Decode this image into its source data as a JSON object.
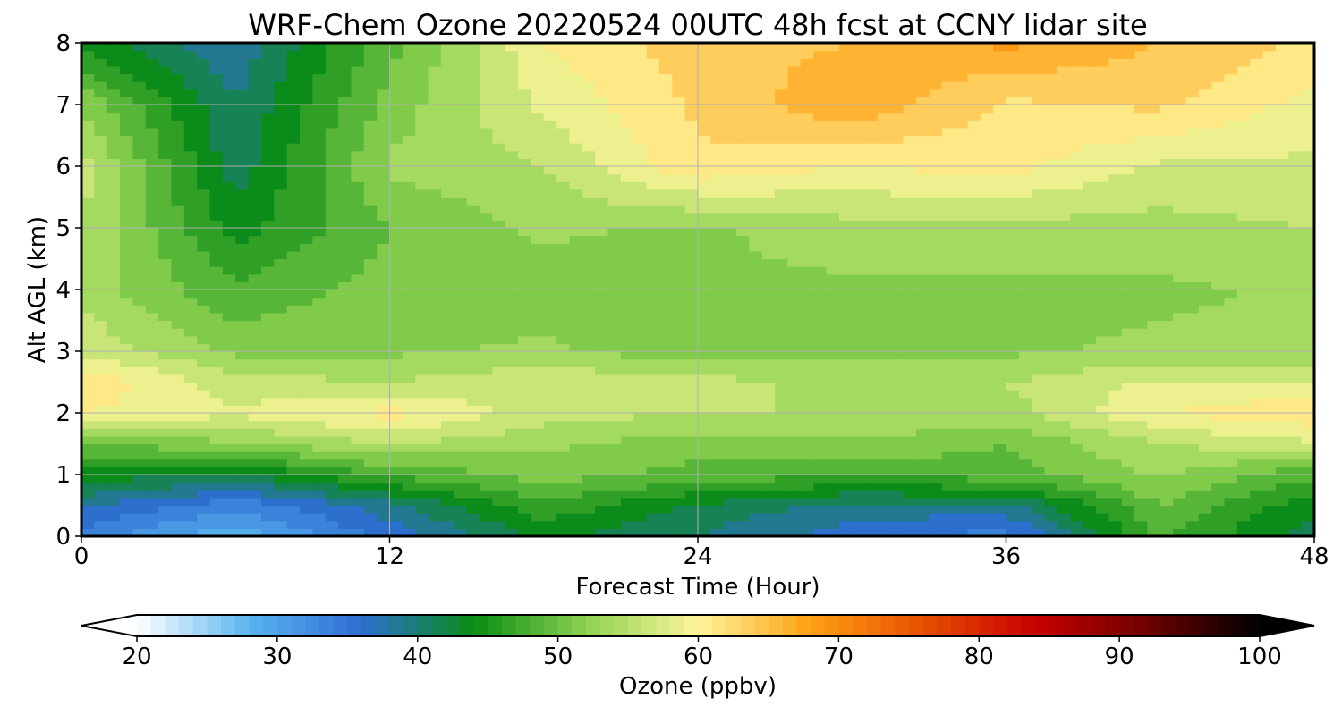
{
  "chart_data": {
    "type": "heatmap",
    "title": "WRF-Chem Ozone  20220524 00UTC 48h fcst at CCNY lidar site",
    "xlabel": "Forecast Time (Hour)",
    "ylabel": "Alt AGL (km)",
    "xlim": [
      0,
      48
    ],
    "ylim": [
      0,
      8
    ],
    "x_ticks": [
      0,
      12,
      24,
      36,
      48
    ],
    "y_ticks": [
      0,
      1,
      2,
      3,
      4,
      5,
      6,
      7,
      8
    ],
    "grid": true,
    "colorbar": {
      "label": "Ozone  (ppbv)",
      "range": [
        20,
        100
      ],
      "ticks": [
        20,
        30,
        40,
        50,
        60,
        70,
        80,
        90,
        100
      ],
      "extend": "both",
      "colors": [
        "#ffffff",
        "#5ab4f0",
        "#2e6ed2",
        "#0a8c14",
        "#8cd250",
        "#fff59b",
        "#ffa014",
        "#e65000",
        "#c80000",
        "#6e0000",
        "#000000"
      ]
    },
    "grid_x": [
      0,
      6,
      12,
      18,
      24,
      30,
      36,
      42,
      48
    ],
    "grid_y": [
      0,
      0.5,
      1,
      1.5,
      2,
      2.5,
      3,
      4,
      5,
      6,
      7,
      8
    ],
    "values": [
      [
        34,
        28,
        36,
        43,
        40,
        36,
        34,
        48,
        41
      ],
      [
        38,
        33,
        39,
        47,
        42,
        39,
        39,
        50,
        43
      ],
      [
        44,
        42,
        48,
        51,
        49,
        48,
        49,
        53,
        48
      ],
      [
        50,
        52,
        55,
        53,
        51,
        52,
        50,
        55,
        57
      ],
      [
        60,
        58,
        61,
        56,
        55,
        55,
        54,
        60,
        62
      ],
      [
        62,
        56,
        55,
        57,
        56,
        54,
        55,
        58,
        58
      ],
      [
        57,
        52,
        52,
        53,
        51,
        52,
        52,
        53,
        53
      ],
      [
        54,
        48,
        51,
        51,
        52,
        52,
        52,
        52,
        53
      ],
      [
        55,
        44,
        50,
        53,
        52,
        54,
        54,
        54,
        55
      ],
      [
        56,
        41,
        53,
        55,
        62,
        60,
        61,
        57,
        57
      ],
      [
        52,
        40,
        51,
        58,
        63,
        67,
        62,
        63,
        59
      ],
      [
        44,
        38,
        49,
        60,
        64,
        65,
        68,
        65,
        62
      ]
    ]
  }
}
